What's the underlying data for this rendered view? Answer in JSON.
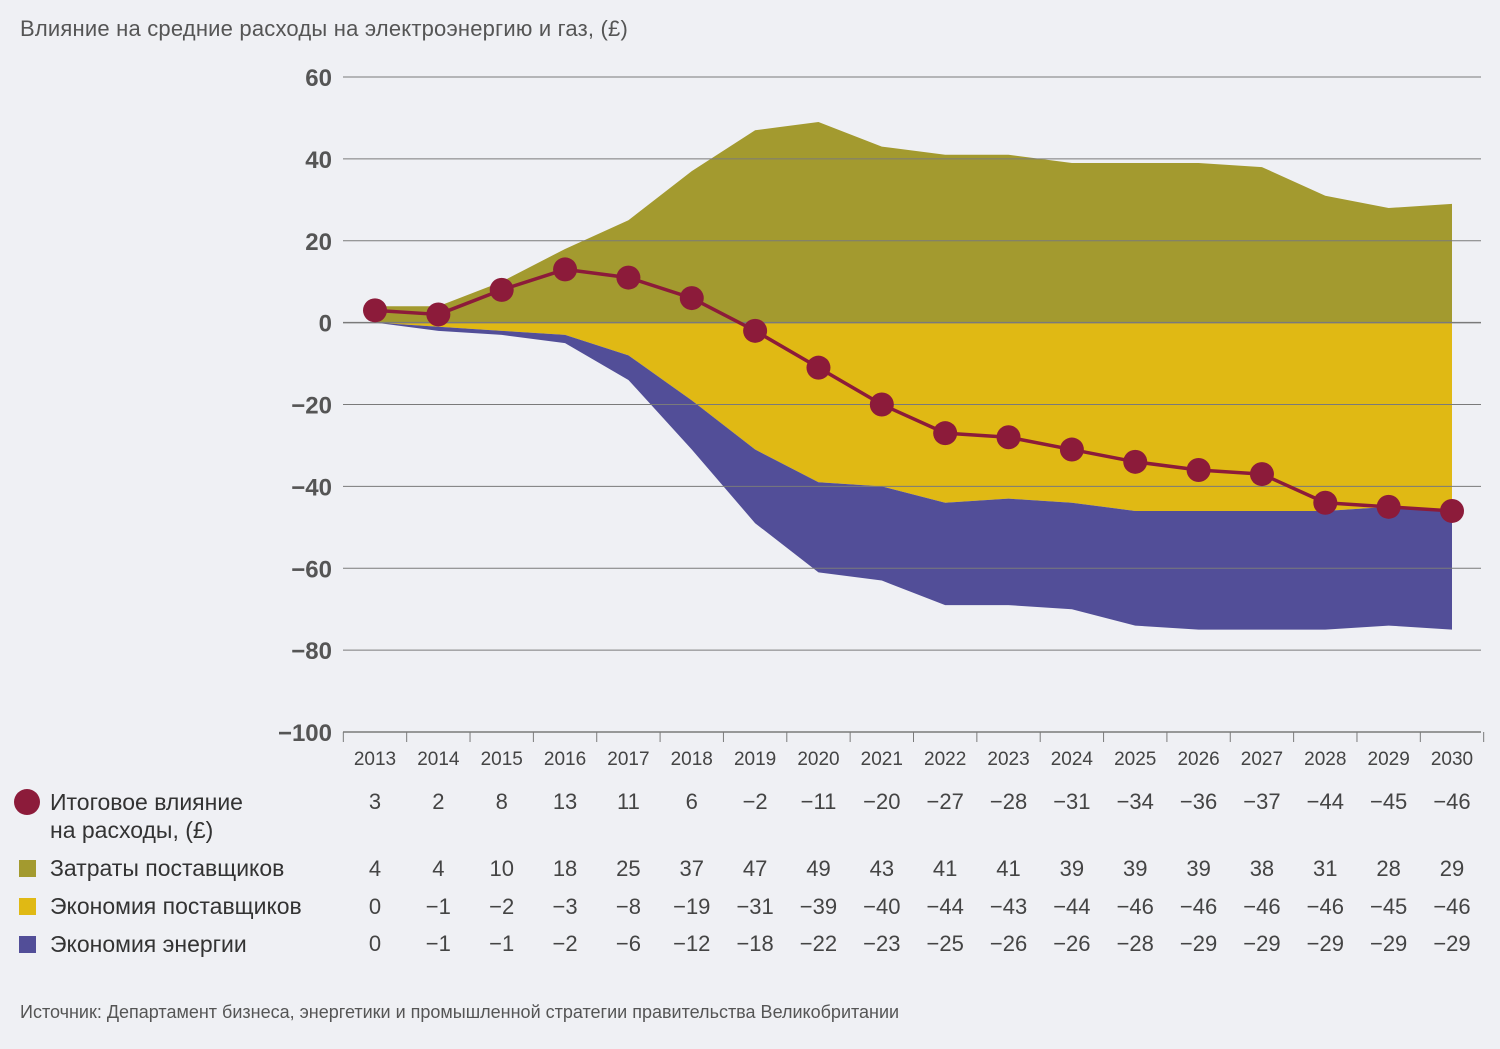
{
  "title": "Влияние на средние расходы на электроэнергию и газ,  (£)",
  "source": "Источник: Департамент бизнеса, энергетики и промышленной стратегии правительства Великобритании",
  "colors": {
    "background": "#eff0f4",
    "supplier_costs": "#a39a2f",
    "supplier_savings": "#e0b914",
    "energy_savings": "#524e98",
    "net_impact": "#8c1b3a",
    "grid": "#7a7a7a"
  },
  "legend": [
    {
      "key": "net",
      "label_line1": "Итоговое влияние",
      "label_line2": "на расходы,  (£)",
      "marker": "circle"
    },
    {
      "key": "supplier_costs",
      "label_line1": "Затраты поставщиков",
      "marker": "square"
    },
    {
      "key": "supplier_savings",
      "label_line1": "Экономия поставщиков",
      "marker": "square"
    },
    {
      "key": "energy_savings",
      "label_line1": "Экономия энергии",
      "marker": "square"
    }
  ],
  "table": {
    "net": [
      "3",
      "2",
      "8",
      "13",
      "11",
      "6",
      "−2",
      "−11",
      "−20",
      "−27",
      "−28",
      "−31",
      "−34",
      "−36",
      "−37",
      "−44",
      "−45",
      "−46"
    ],
    "supplier_costs": [
      "4",
      "4",
      "10",
      "18",
      "25",
      "37",
      "47",
      "49",
      "43",
      "41",
      "41",
      "39",
      "39",
      "39",
      "38",
      "31",
      "28",
      "29"
    ],
    "supplier_savings": [
      "0",
      "−1",
      "−2",
      "−3",
      "−8",
      "−19",
      "−31",
      "−39",
      "−40",
      "−44",
      "−43",
      "−44",
      "−46",
      "−46",
      "−46",
      "−46",
      "−45",
      "−46"
    ],
    "energy_savings": [
      "0",
      "−1",
      "−1",
      "−2",
      "−6",
      "−12",
      "−18",
      "−22",
      "−23",
      "−25",
      "−26",
      "−26",
      "−28",
      "−29",
      "−29",
      "−29",
      "−29",
      "−29"
    ]
  },
  "chart_data": {
    "type": "area",
    "title": "Влияние на средние расходы на электроэнергию и газ,  (£)",
    "ylim": [
      -100,
      60
    ],
    "yticks": [
      60,
      40,
      20,
      0,
      -20,
      -40,
      -60,
      -80,
      -100
    ],
    "ytick_labels": [
      "60",
      "40",
      "20",
      "0",
      "−20",
      "−40",
      "−60",
      "−80",
      "−100"
    ],
    "grid": true,
    "categories": [
      "2013",
      "2014",
      "2015",
      "2016",
      "2017",
      "2018",
      "2019",
      "2020",
      "2021",
      "2022",
      "2023",
      "2024",
      "2025",
      "2026",
      "2027",
      "2028",
      "2029",
      "2030"
    ],
    "series": [
      {
        "name": "Затраты поставщиков",
        "type": "area",
        "values": [
          4,
          4,
          10,
          18,
          25,
          37,
          47,
          49,
          43,
          41,
          41,
          39,
          39,
          39,
          38,
          31,
          28,
          29
        ]
      },
      {
        "name": "Экономия поставщиков",
        "type": "area",
        "values": [
          0,
          -1,
          -2,
          -3,
          -8,
          -19,
          -31,
          -39,
          -40,
          -44,
          -43,
          -44,
          -46,
          -46,
          -46,
          -46,
          -45,
          -46
        ]
      },
      {
        "name": "Экономия энергии",
        "type": "area",
        "stacked_below": "Экономия поставщиков",
        "values": [
          0,
          -1,
          -1,
          -2,
          -6,
          -12,
          -18,
          -22,
          -23,
          -25,
          -26,
          -26,
          -28,
          -29,
          -29,
          -29,
          -29,
          -29
        ]
      },
      {
        "name": "Итоговое влияние на расходы,  (£)",
        "type": "line",
        "values": [
          3,
          2,
          8,
          13,
          11,
          6,
          -2,
          -11,
          -20,
          -27,
          -28,
          -31,
          -34,
          -36,
          -37,
          -44,
          -45,
          -46
        ]
      }
    ]
  }
}
